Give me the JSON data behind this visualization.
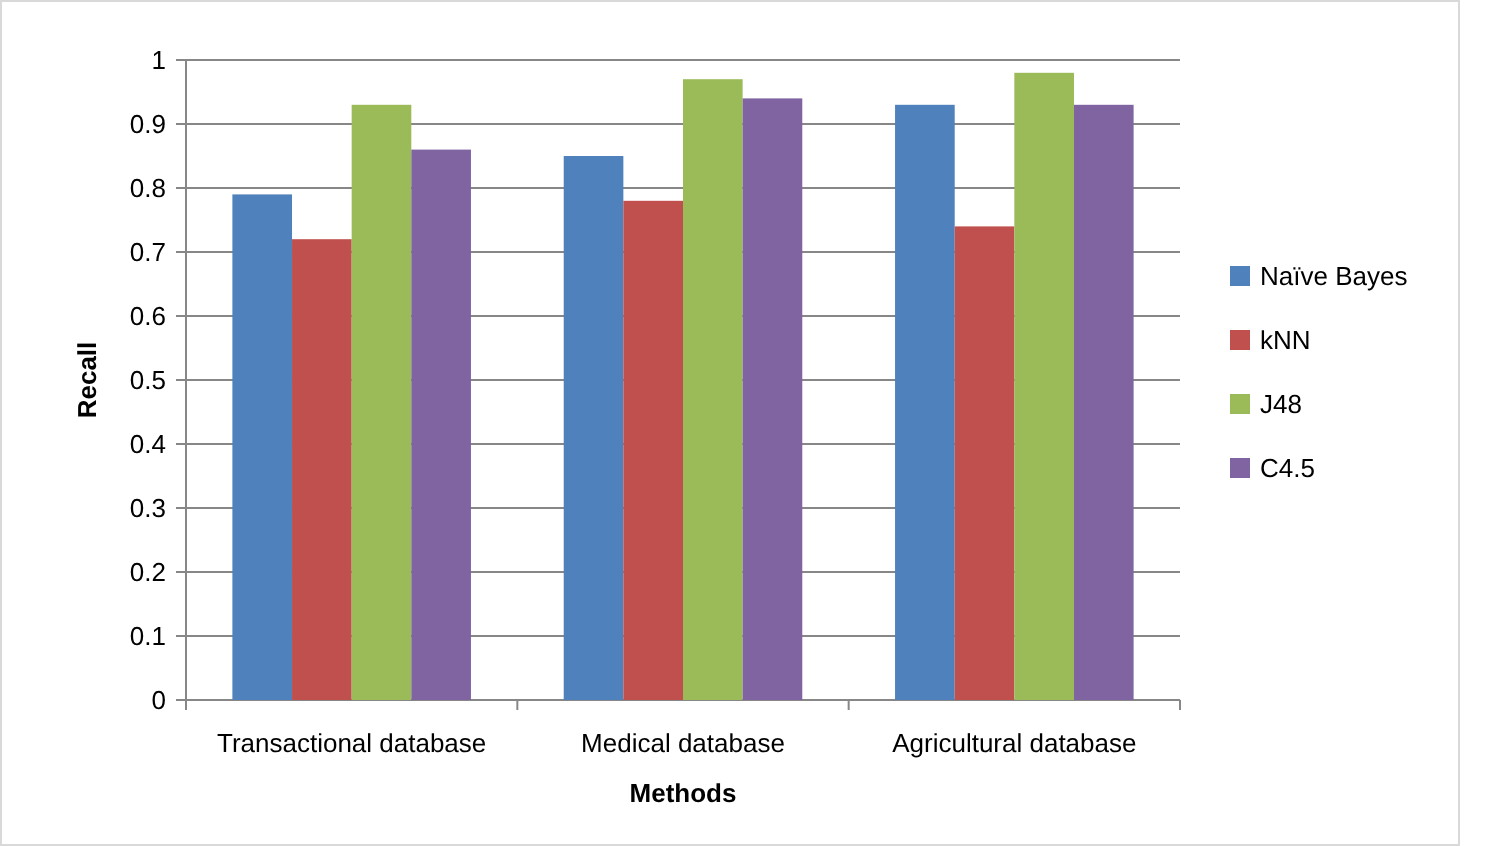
{
  "chart_data": {
    "type": "bar",
    "xlabel": "Methods",
    "ylabel": "Recall",
    "categories": [
      "Transactional database",
      "Medical database",
      "Agricultural database"
    ],
    "series": [
      {
        "name": "Naïve Bayes",
        "color": "#4f81bd",
        "values": [
          0.79,
          0.85,
          0.93
        ]
      },
      {
        "name": "kNN",
        "color": "#c0504d",
        "values": [
          0.72,
          0.78,
          0.74
        ]
      },
      {
        "name": "J48",
        "color": "#9bbb59",
        "values": [
          0.93,
          0.97,
          0.98
        ]
      },
      {
        "name": "C4.5",
        "color": "#8064a2",
        "values": [
          0.86,
          0.94,
          0.93
        ]
      }
    ],
    "ylim": [
      0,
      1
    ],
    "yticks": [
      0,
      0.1,
      0.2,
      0.3,
      0.4,
      0.5,
      0.6,
      0.7,
      0.8,
      0.9,
      1
    ],
    "grid": "y",
    "legend": "right"
  }
}
